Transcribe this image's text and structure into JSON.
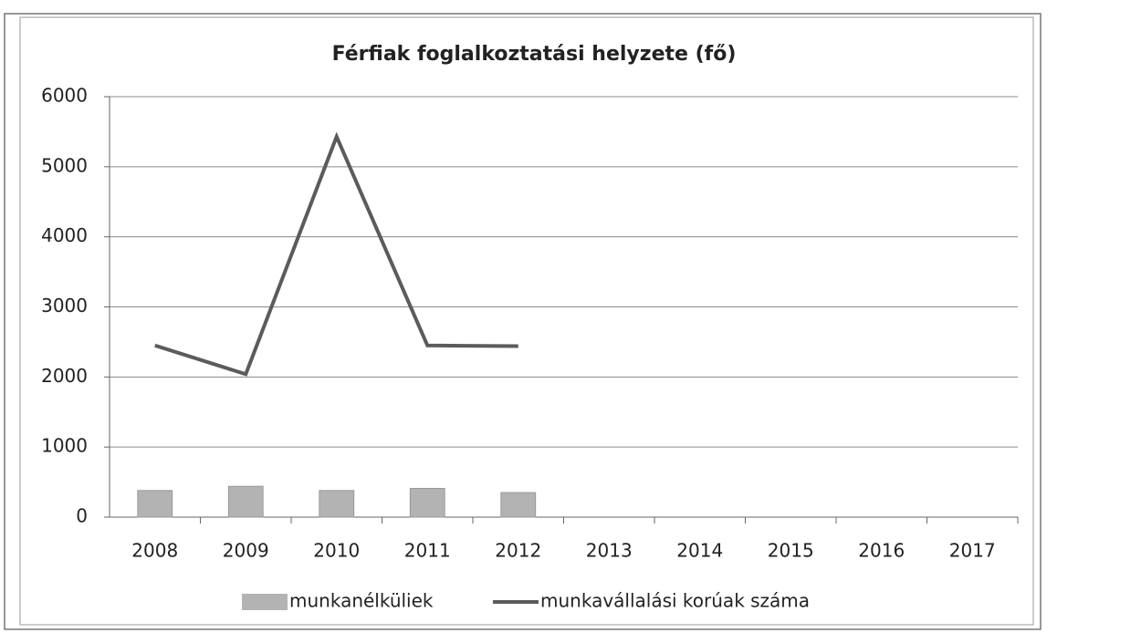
{
  "chart_data": {
    "type": "combo",
    "title": "Férfiak foglalkoztatási helyzete (fő)",
    "categories": [
      "2008",
      "2009",
      "2010",
      "2011",
      "2012",
      "2013",
      "2014",
      "2015",
      "2016",
      "2017"
    ],
    "series": [
      {
        "name": "munkanélküliek",
        "type": "bar",
        "color": "#b3b3b3",
        "values": [
          380,
          440,
          380,
          410,
          350,
          null,
          null,
          null,
          null,
          null
        ]
      },
      {
        "name": "munkavállalási korúak száma",
        "type": "line",
        "color": "#5b5b5b",
        "values": [
          2450,
          2040,
          5430,
          2450,
          2440,
          null,
          null,
          null,
          null,
          null
        ]
      }
    ],
    "ylim": [
      0,
      6000
    ],
    "yticks": [
      0,
      1000,
      2000,
      3000,
      4000,
      5000,
      6000
    ],
    "grid": true,
    "legend": "bottom"
  }
}
